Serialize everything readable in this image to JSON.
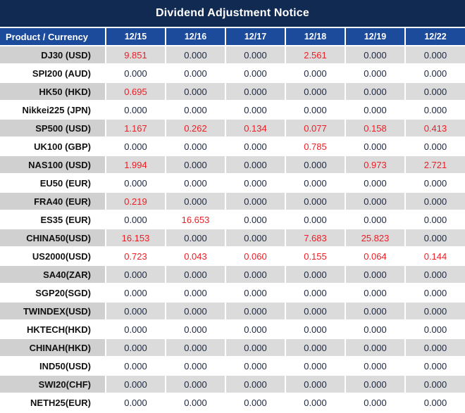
{
  "title": "Dividend Adjustment Notice",
  "colors": {
    "title_bg": "#112a52",
    "header_bg": "#1c4b9c",
    "row_gray": "#dbdbdb",
    "value_text": "#1c2740",
    "red_value": "#ee1c25"
  },
  "table": {
    "header": {
      "product_label": "Product / Currency",
      "dates": [
        "12/15",
        "12/16",
        "12/17",
        "12/18",
        "12/19",
        "12/22"
      ]
    },
    "rows": [
      {
        "product": "DJ30 (USD)",
        "values": [
          "9.851",
          "0.000",
          "0.000",
          "2.561",
          "0.000",
          "0.000"
        ],
        "red": [
          true,
          false,
          false,
          true,
          false,
          false
        ]
      },
      {
        "product": "SPI200 (AUD)",
        "values": [
          "0.000",
          "0.000",
          "0.000",
          "0.000",
          "0.000",
          "0.000"
        ],
        "red": [
          false,
          false,
          false,
          false,
          false,
          false
        ]
      },
      {
        "product": "HK50 (HKD)",
        "values": [
          "0.695",
          "0.000",
          "0.000",
          "0.000",
          "0.000",
          "0.000"
        ],
        "red": [
          true,
          false,
          false,
          false,
          false,
          false
        ]
      },
      {
        "product": "Nikkei225 (JPN)",
        "values": [
          "0.000",
          "0.000",
          "0.000",
          "0.000",
          "0.000",
          "0.000"
        ],
        "red": [
          false,
          false,
          false,
          false,
          false,
          false
        ]
      },
      {
        "product": "SP500 (USD)",
        "values": [
          "1.167",
          "0.262",
          "0.134",
          "0.077",
          "0.158",
          "0.413"
        ],
        "red": [
          true,
          true,
          true,
          true,
          true,
          true
        ]
      },
      {
        "product": "UK100 (GBP)",
        "values": [
          "0.000",
          "0.000",
          "0.000",
          "0.785",
          "0.000",
          "0.000"
        ],
        "red": [
          false,
          false,
          false,
          true,
          false,
          false
        ]
      },
      {
        "product": "NAS100 (USD)",
        "values": [
          "1.994",
          "0.000",
          "0.000",
          "0.000",
          "0.973",
          "2.721"
        ],
        "red": [
          true,
          false,
          false,
          false,
          true,
          true
        ]
      },
      {
        "product": "EU50 (EUR)",
        "values": [
          "0.000",
          "0.000",
          "0.000",
          "0.000",
          "0.000",
          "0.000"
        ],
        "red": [
          false,
          false,
          false,
          false,
          false,
          false
        ]
      },
      {
        "product": "FRA40 (EUR)",
        "values": [
          "0.219",
          "0.000",
          "0.000",
          "0.000",
          "0.000",
          "0.000"
        ],
        "red": [
          true,
          false,
          false,
          false,
          false,
          false
        ]
      },
      {
        "product": "ES35 (EUR)",
        "values": [
          "0.000",
          "16.653",
          "0.000",
          "0.000",
          "0.000",
          "0.000"
        ],
        "red": [
          false,
          true,
          false,
          false,
          false,
          false
        ]
      },
      {
        "product": "CHINA50(USD)",
        "values": [
          "16.153",
          "0.000",
          "0.000",
          "7.683",
          "25.823",
          "0.000"
        ],
        "red": [
          true,
          false,
          false,
          true,
          true,
          false
        ]
      },
      {
        "product": "US2000(USD)",
        "values": [
          "0.723",
          "0.043",
          "0.060",
          "0.155",
          "0.064",
          "0.144"
        ],
        "red": [
          true,
          true,
          true,
          true,
          true,
          true
        ]
      },
      {
        "product": "SA40(ZAR)",
        "values": [
          "0.000",
          "0.000",
          "0.000",
          "0.000",
          "0.000",
          "0.000"
        ],
        "red": [
          false,
          false,
          false,
          false,
          false,
          false
        ]
      },
      {
        "product": "SGP20(SGD)",
        "values": [
          "0.000",
          "0.000",
          "0.000",
          "0.000",
          "0.000",
          "0.000"
        ],
        "red": [
          false,
          false,
          false,
          false,
          false,
          false
        ]
      },
      {
        "product": "TWINDEX(USD)",
        "values": [
          "0.000",
          "0.000",
          "0.000",
          "0.000",
          "0.000",
          "0.000"
        ],
        "red": [
          false,
          false,
          false,
          false,
          false,
          false
        ]
      },
      {
        "product": "HKTECH(HKD)",
        "values": [
          "0.000",
          "0.000",
          "0.000",
          "0.000",
          "0.000",
          "0.000"
        ],
        "red": [
          false,
          false,
          false,
          false,
          false,
          false
        ]
      },
      {
        "product": "CHINAH(HKD)",
        "values": [
          "0.000",
          "0.000",
          "0.000",
          "0.000",
          "0.000",
          "0.000"
        ],
        "red": [
          false,
          false,
          false,
          false,
          false,
          false
        ]
      },
      {
        "product": "IND50(USD)",
        "values": [
          "0.000",
          "0.000",
          "0.000",
          "0.000",
          "0.000",
          "0.000"
        ],
        "red": [
          false,
          false,
          false,
          false,
          false,
          false
        ]
      },
      {
        "product": "SWI20(CHF)",
        "values": [
          "0.000",
          "0.000",
          "0.000",
          "0.000",
          "0.000",
          "0.000"
        ],
        "red": [
          false,
          false,
          false,
          false,
          false,
          false
        ]
      },
      {
        "product": "NETH25(EUR)",
        "values": [
          "0.000",
          "0.000",
          "0.000",
          "0.000",
          "0.000",
          "0.000"
        ],
        "red": [
          false,
          false,
          false,
          false,
          false,
          false
        ]
      }
    ]
  }
}
